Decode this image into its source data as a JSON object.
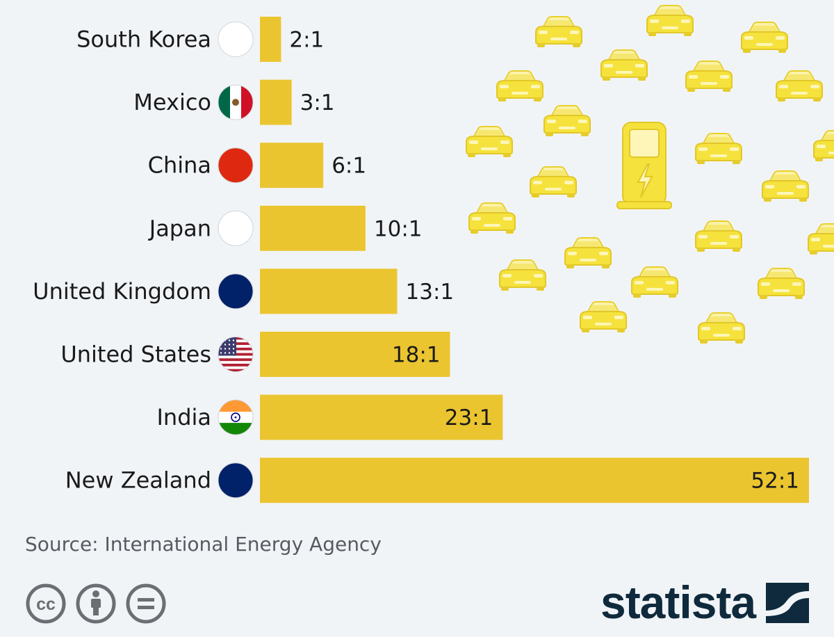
{
  "chart_data": {
    "type": "bar",
    "orientation": "horizontal",
    "title": "",
    "categories": [
      "South Korea",
      "Mexico",
      "China",
      "Japan",
      "United Kingdom",
      "United States",
      "India",
      "New Zealand"
    ],
    "values": [
      2,
      3,
      6,
      10,
      13,
      18,
      23,
      52
    ],
    "value_labels": [
      "2:1",
      "3:1",
      "6:1",
      "10:1",
      "13:1",
      "18:1",
      "23:1",
      "52:1"
    ],
    "flag_icons": [
      "south-korea-flag-icon",
      "mexico-flag-icon",
      "china-flag-icon",
      "japan-flag-icon",
      "united-kingdom-flag-icon",
      "united-states-flag-icon",
      "india-flag-icon",
      "new-zealand-flag-icon"
    ],
    "xlim": [
      0,
      52
    ],
    "grid": false,
    "bar_color": "#ebc530",
    "xlabel": "",
    "ylabel": ""
  },
  "decoration": {
    "car_icon": "car-icon",
    "charger_icon": "charging-station-icon",
    "icon_color": "#f2de46"
  },
  "footer": {
    "source": "Source: International Energy Agency",
    "license_icons": [
      "creative-commons-icon",
      "attribution-icon",
      "no-derivatives-icon"
    ],
    "brand": "statista",
    "brand_color": "#0f2a3c"
  },
  "colors": {
    "background": "#f1f4f7"
  }
}
